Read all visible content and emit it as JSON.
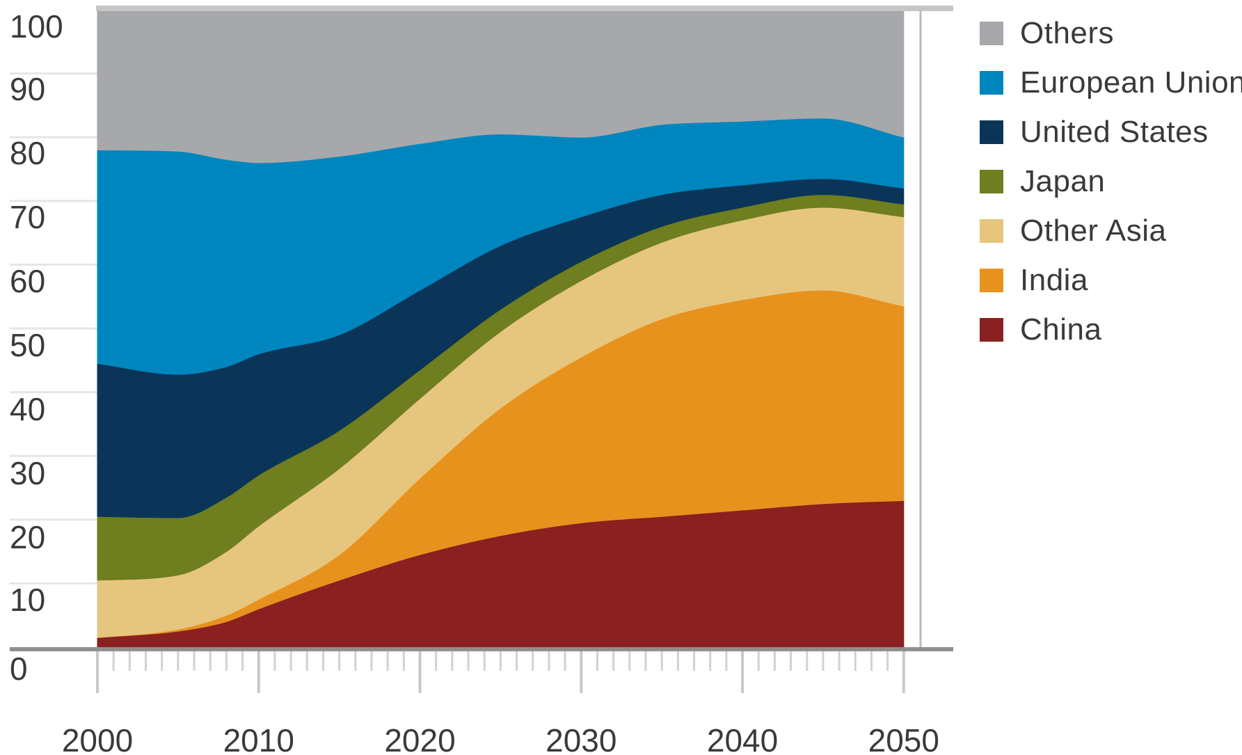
{
  "chart_data": {
    "type": "area",
    "stacked": true,
    "x": [
      2000,
      2005,
      2008,
      2010,
      2015,
      2020,
      2025,
      2030,
      2035,
      2040,
      2045,
      2050
    ],
    "series": [
      {
        "name": "China",
        "color": "#8B2020",
        "values": [
          1.5,
          2.5,
          4,
          6,
          10.5,
          14.5,
          17.5,
          19.5,
          20.5,
          21.5,
          22.5,
          23
        ]
      },
      {
        "name": "India",
        "color": "#E8921E",
        "values": [
          0,
          0.3,
          1,
          1.5,
          4,
          12,
          20,
          26,
          31,
          33,
          33.5,
          30.5
        ]
      },
      {
        "name": "Other Asia",
        "color": "#E6C67E",
        "values": [
          9,
          8.5,
          10,
          11.5,
          13.5,
          12.5,
          12,
          12,
          12,
          12.5,
          13,
          14
        ]
      },
      {
        "name": "Japan",
        "color": "#6F7E1E",
        "values": [
          10,
          9,
          8.5,
          8,
          6,
          4.5,
          3.5,
          3,
          2.5,
          2,
          2,
          2
        ]
      },
      {
        "name": "United States",
        "color": "#0B3558",
        "values": [
          24,
          22.5,
          20.5,
          19,
          15,
          12.5,
          10,
          7,
          5,
          3.5,
          2.5,
          2.5
        ]
      },
      {
        "name": "European Union",
        "color": "#0086BE",
        "values": [
          33.5,
          35,
          32.5,
          30,
          28,
          23,
          17.5,
          12.5,
          11,
          10,
          9.5,
          8
        ]
      },
      {
        "name": "Others",
        "color": "#A7A8AB",
        "values": [
          22,
          22.2,
          23.5,
          24,
          23,
          21,
          19.5,
          20,
          18,
          17.5,
          17,
          20
        ]
      }
    ],
    "legend_order": [
      "Others",
      "European Union",
      "United States",
      "Japan",
      "Other Asia",
      "India",
      "China"
    ],
    "legend_position": "right",
    "ylim": [
      0,
      100
    ],
    "yticks": [
      "100",
      "90",
      "80",
      "70",
      "60",
      "50",
      "40",
      "30",
      "20",
      "10",
      "0"
    ],
    "xticks": [
      "2000",
      "2010",
      "2020",
      "2030",
      "2040",
      "2050"
    ],
    "xlim": [
      2000,
      2051
    ],
    "grid": "horizontal",
    "title": "",
    "xlabel": "",
    "ylabel": ""
  }
}
